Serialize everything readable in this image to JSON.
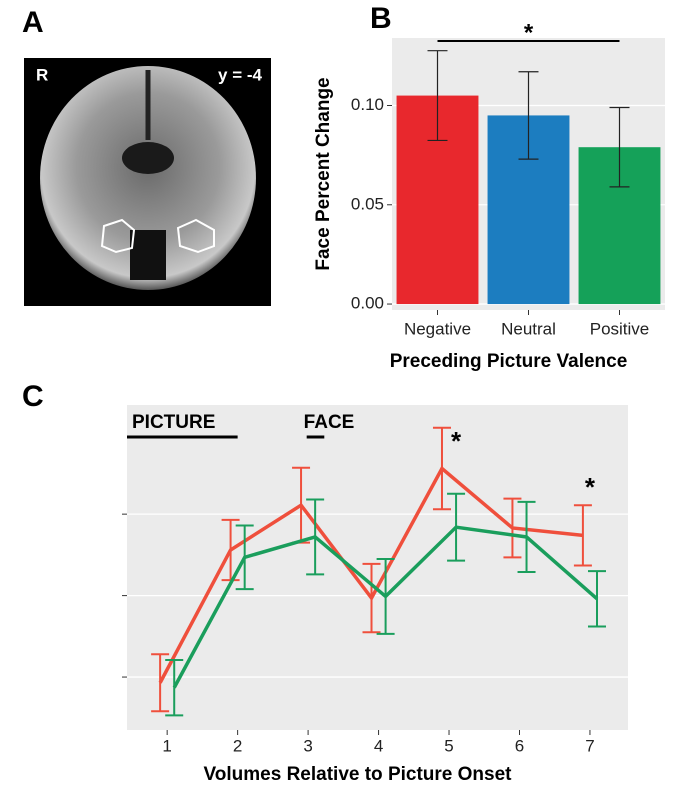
{
  "panel_a": {
    "label": "A",
    "image_labels": [
      "R",
      "y = -4"
    ]
  },
  "chart_data": [
    {
      "type": "bar",
      "panel": "B",
      "ylabel": "Face Percent Change",
      "xlabel": "Preceding Picture Valence",
      "categories": [
        "Negative",
        "Neutral",
        "Positive"
      ],
      "values": [
        0.105,
        0.095,
        0.079
      ],
      "errors": [
        0.0226,
        0.022,
        0.02
      ],
      "colors": [
        "#e8282d",
        "#1c7dc0",
        "#15a159"
      ],
      "ylim": [
        -0.003,
        0.134
      ],
      "yticks": [
        {
          "value": 0,
          "label": "0.00"
        },
        {
          "value": 0.05,
          "label": "0.05"
        },
        {
          "value": 0.1,
          "label": "0.10"
        }
      ],
      "grid": true,
      "annotations": [
        "*"
      ]
    },
    {
      "type": "line",
      "panel": "C",
      "xlabel": "Volumes Relative to Picture Onset",
      "x": [
        1,
        2,
        3,
        4,
        5,
        6,
        7
      ],
      "series": [
        {
          "color": "#ef4f3c",
          "values": [
            -0.07,
            1.56,
            2.11,
            0.97,
            2.56,
            1.83,
            1.74
          ],
          "errors": [
            0.35,
            0.37,
            0.46,
            0.42,
            0.5,
            0.36,
            0.37
          ]
        },
        {
          "color": "#1a9e5c",
          "values": [
            -0.13,
            1.47,
            1.72,
            0.99,
            1.84,
            1.72,
            0.96
          ],
          "errors": [
            0.34,
            0.39,
            0.46,
            0.46,
            0.41,
            0.43,
            0.34
          ]
        }
      ],
      "xlim": [
        0.43,
        7.54
      ],
      "xticks": [
        1,
        2,
        3,
        4,
        5,
        6,
        7
      ],
      "ylim": [
        -0.65,
        3.34
      ],
      "yticks": [
        0,
        1,
        2
      ],
      "ytick_labels": false,
      "grid": true,
      "annotations": [
        "PICTURE",
        "FACE",
        "*",
        "*"
      ]
    }
  ]
}
